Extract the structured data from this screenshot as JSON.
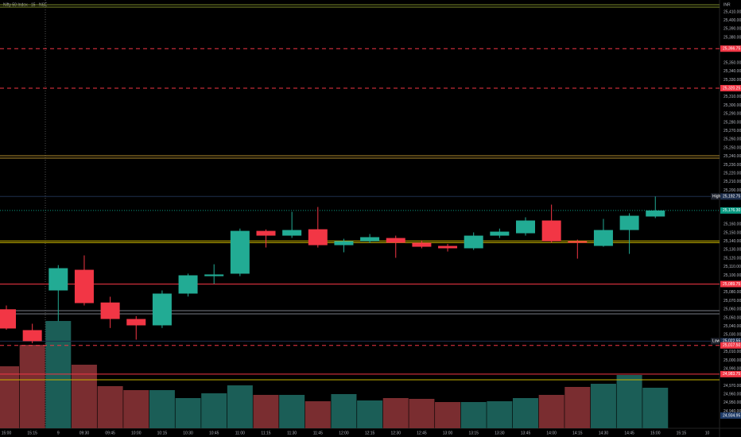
{
  "chart_data": {
    "type": "candlestick",
    "title": "Nifty 50 Index · 15 · NSE",
    "currency": "INR",
    "categories": [
      "15:00",
      "15:15",
      "9",
      "09:30",
      "09:45",
      "10:00",
      "10:15",
      "10:30",
      "10:45",
      "11:00",
      "11:15",
      "11:30",
      "11:45",
      "12:00",
      "12:15",
      "12:30",
      "12:45",
      "13:00",
      "13:15",
      "13:30",
      "13:45",
      "14:00",
      "14:15",
      "14:30",
      "14:45",
      "15:00",
      "15:15",
      "10"
    ],
    "open": [
      25060,
      25035.5,
      25082.2,
      25106.5,
      25068,
      25048.6,
      25041.1,
      25078.5,
      25099,
      25101.9,
      25152.3,
      25146.7,
      25154.2,
      25135.5,
      25140.2,
      25143.9,
      25138.3,
      25134.6,
      25131.8,
      25146.7,
      25149.5,
      25164.5,
      25140.2,
      25134.6,
      25153.3,
      25169.2,
      null,
      null
    ],
    "high": [
      25064.5,
      25043,
      25112,
      25123.4,
      25074.8,
      25052,
      25082.2,
      25102,
      25113,
      25155,
      25154,
      25174.8,
      25180.4,
      25143,
      25148.6,
      25146.7,
      25141,
      25137,
      25150.5,
      25155,
      25168.3,
      25183.2,
      25142,
      25166.4,
      25173,
      25192.75,
      null,
      null
    ],
    "low": [
      25036,
      25020,
      25046,
      25064.5,
      25038,
      25024.3,
      25038,
      25075,
      25090,
      25099,
      25132.7,
      25144,
      25132.7,
      25127.1,
      25138,
      25120.6,
      25131.8,
      25128,
      25129.9,
      25143.9,
      25146.7,
      25138.3,
      25119.6,
      25133.6,
      25125.2,
      25167.3,
      null,
      null
    ],
    "close": [
      25037.4,
      25022.5,
      25108.4,
      25067.3,
      25048.6,
      25041.1,
      25078.5,
      25100,
      25101,
      25152.3,
      25146.7,
      25153.3,
      25135.5,
      25140.2,
      25144.9,
      25138.3,
      25133.6,
      25131.8,
      25146.7,
      25151.4,
      25164.5,
      25140.2,
      25138.3,
      25153.3,
      25170.1,
      25176.3,
      null,
      null
    ],
    "volume": [
      78,
      105,
      135,
      80,
      53,
      48,
      48,
      38,
      44,
      54,
      42,
      42,
      34,
      43,
      35,
      38,
      37,
      33,
      33,
      34,
      38,
      42,
      52,
      56,
      67,
      51,
      null,
      null
    ],
    "colors": {
      "up": "#22ab94",
      "down": "#f23645",
      "up_volume": "#1b5e57",
      "down_volume": "#7a2d30"
    },
    "ylim": [
      24920,
      25424
    ],
    "yticks": [
      {
        "value": 25410,
        "label": "25,410.00"
      },
      {
        "value": 25400,
        "label": "25,400.00"
      },
      {
        "value": 25390,
        "label": "25,390.00"
      },
      {
        "value": 25380,
        "label": "25,380.00"
      },
      {
        "value": 25350,
        "label": "25,350.00"
      },
      {
        "value": 25340,
        "label": "25,340.00"
      },
      {
        "value": 25330,
        "label": "25,330.00"
      },
      {
        "value": 25310,
        "label": "25,310.00"
      },
      {
        "value": 25300,
        "label": "25,300.00"
      },
      {
        "value": 25290,
        "label": "25,290.00"
      },
      {
        "value": 25280,
        "label": "25,280.00"
      },
      {
        "value": 25270,
        "label": "25,270.00"
      },
      {
        "value": 25260,
        "label": "25,260.00"
      },
      {
        "value": 25250,
        "label": "25,250.00"
      },
      {
        "value": 25240,
        "label": "25,240.00"
      },
      {
        "value": 25230,
        "label": "25,230.00"
      },
      {
        "value": 25220,
        "label": "25,220.00"
      },
      {
        "value": 25210,
        "label": "25,210.00"
      },
      {
        "value": 25200,
        "label": "25,200.00"
      },
      {
        "value": 25160,
        "label": "25,160.00"
      },
      {
        "value": 25150,
        "label": "25,150.00"
      },
      {
        "value": 25140,
        "label": "25,140.00"
      },
      {
        "value": 25130,
        "label": "25,130.00"
      },
      {
        "value": 25120,
        "label": "25,120.00"
      },
      {
        "value": 25110,
        "label": "25,110.00"
      },
      {
        "value": 25100,
        "label": "25,100.00"
      },
      {
        "value": 25080,
        "label": "25,080.00"
      },
      {
        "value": 25070,
        "label": "25,070.00"
      },
      {
        "value": 25060,
        "label": "25,060.00"
      },
      {
        "value": 25050,
        "label": "25,050.00"
      },
      {
        "value": 25040,
        "label": "25,040.00"
      },
      {
        "value": 25030,
        "label": "25,030.00"
      },
      {
        "value": 25010,
        "label": "25,010.00"
      },
      {
        "value": 25000,
        "label": "25,000.00"
      },
      {
        "value": 24990,
        "label": "24,990.00"
      },
      {
        "value": 24970,
        "label": "24,970.00"
      },
      {
        "value": 24960,
        "label": "24,960.00"
      },
      {
        "value": 24950,
        "label": "24,950.00"
      },
      {
        "value": 24940,
        "label": "24,940.00"
      }
    ],
    "levels": [
      {
        "value": 25418.4,
        "color": "#7d8a2a",
        "style": "solid"
      },
      {
        "value": 25415.6,
        "color": "#7d8a2a",
        "style": "solid"
      },
      {
        "value": 25366.75,
        "color": "#f23645",
        "style": "dashed",
        "label": "25,366.75"
      },
      {
        "value": 25320.25,
        "color": "#f23645",
        "style": "dashed",
        "label": "25,320.25"
      },
      {
        "value": 25240.7,
        "color": "#b08a2e",
        "style": "solid"
      },
      {
        "value": 25237.9,
        "color": "#b08a2e",
        "style": "solid"
      },
      {
        "value": 25192.75,
        "color": "#1e2f4d",
        "style": "solid",
        "tag": "High",
        "label": "25,192.75"
      },
      {
        "value": 25176.3,
        "color": "#089981",
        "style": "dotted",
        "label": "25,176.30"
      },
      {
        "value": 25140.5,
        "color": "#c8b400",
        "style": "solid"
      },
      {
        "value": 25138.5,
        "color": "#c8b400",
        "style": "solid"
      },
      {
        "value": 25089.75,
        "color": "#f23645",
        "style": "solid",
        "label": "25,089.75"
      },
      {
        "value": 25058.4,
        "color": "#787b86",
        "style": "solid"
      },
      {
        "value": 25054.6,
        "color": "#787b86",
        "style": "solid"
      },
      {
        "value": 25022.55,
        "color": "#1e2f4d",
        "style": "solid",
        "tag": "Low",
        "label": "25,022.55"
      },
      {
        "value": 25017.5,
        "color": "#f23645",
        "style": "dashed",
        "label": "25,017.50"
      },
      {
        "value": 24983.75,
        "color": "#f23645",
        "style": "solid",
        "label": "24,983.75"
      },
      {
        "value": 24977,
        "color": "#c8b400",
        "style": "solid"
      },
      {
        "value": 24934.95,
        "color": "#1e3a66",
        "style": "none",
        "label": "24,934.95"
      }
    ]
  }
}
